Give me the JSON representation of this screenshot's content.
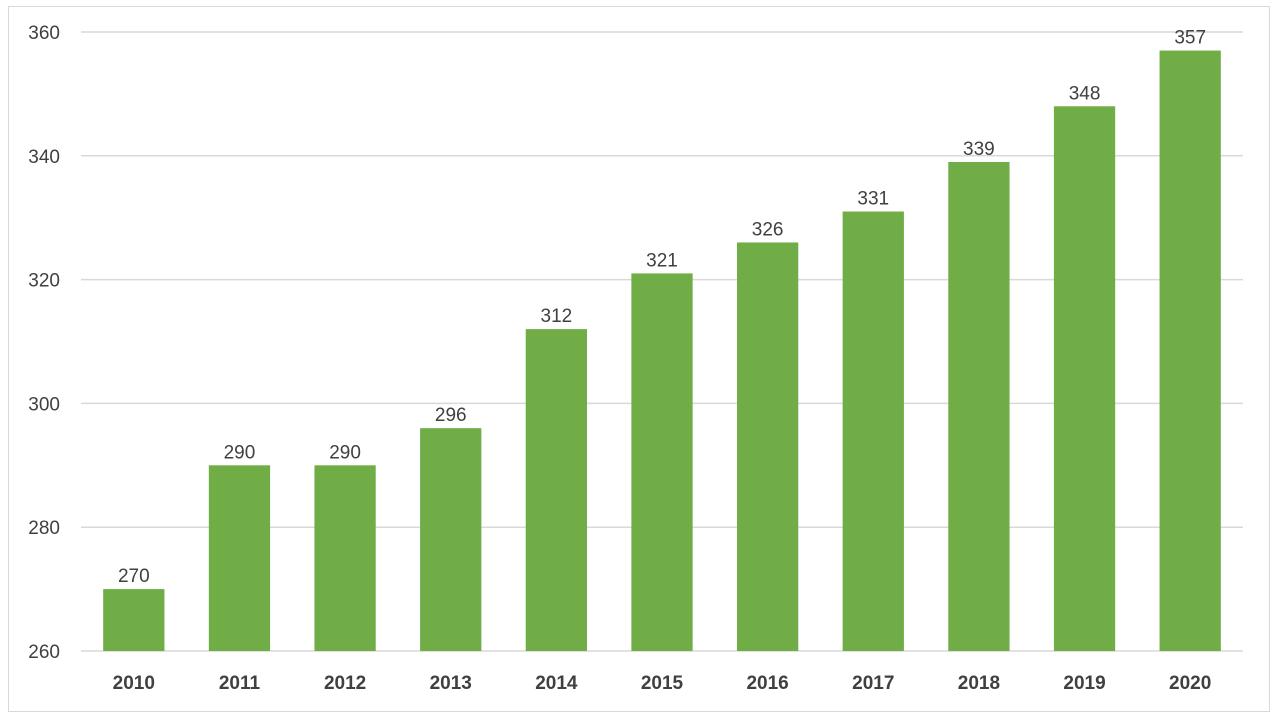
{
  "chart_data": {
    "type": "bar",
    "title": "",
    "xlabel": "",
    "ylabel": "",
    "categories": [
      "2010",
      "2011",
      "2012",
      "2013",
      "2014",
      "2015",
      "2016",
      "2017",
      "2018",
      "2019",
      "2020"
    ],
    "values": [
      270,
      290,
      290,
      296,
      312,
      321,
      326,
      331,
      339,
      348,
      357
    ],
    "ylim": [
      260,
      360
    ],
    "yticks": [
      260,
      280,
      300,
      320,
      340,
      360
    ],
    "grid": true,
    "legend": "none",
    "data_labels": true,
    "bar_color": "#70ad47"
  }
}
